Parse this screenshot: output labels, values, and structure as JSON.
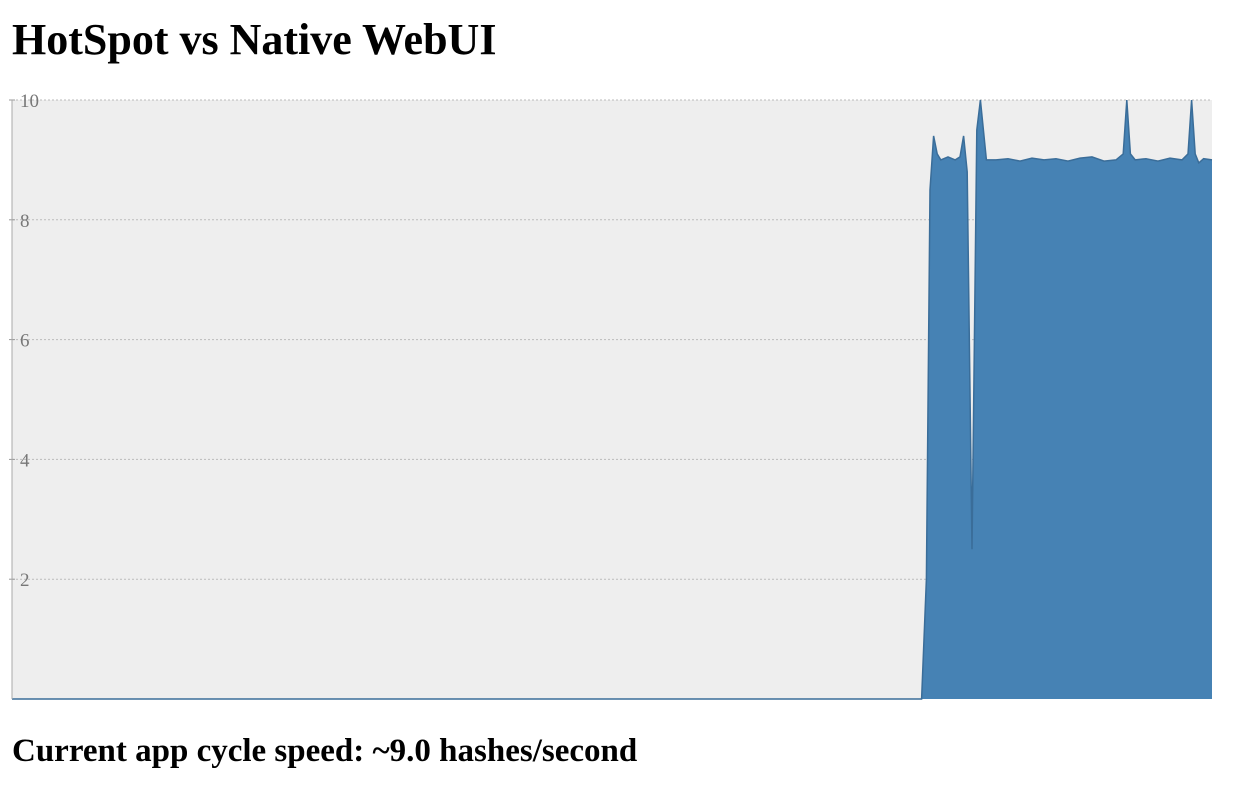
{
  "header": {
    "title": "HotSpot vs Native WebUI"
  },
  "status": {
    "text": "Current app cycle speed: ~9.0 hashes/second"
  },
  "chart_data": {
    "type": "area",
    "title": "",
    "xlabel": "",
    "ylabel": "",
    "ylim": [
      0,
      10
    ],
    "xlim": [
      0,
      100
    ],
    "yticks": [
      2,
      4,
      6,
      8,
      10
    ],
    "grid": true,
    "background": "#eeeeee",
    "gridColor": "#bbbbbb",
    "series": [
      {
        "color": "#4682b4",
        "points": [
          [
            0,
            0
          ],
          [
            75.8,
            0
          ],
          [
            76.2,
            2.0
          ],
          [
            76.5,
            8.5
          ],
          [
            76.8,
            9.4
          ],
          [
            77.1,
            9.1
          ],
          [
            77.4,
            9.0
          ],
          [
            78.0,
            9.05
          ],
          [
            78.6,
            9.0
          ],
          [
            79.0,
            9.05
          ],
          [
            79.3,
            9.4
          ],
          [
            79.6,
            8.8
          ],
          [
            80.0,
            2.5
          ],
          [
            80.4,
            9.5
          ],
          [
            80.7,
            10.0
          ],
          [
            80.9,
            9.6
          ],
          [
            81.2,
            9.0
          ],
          [
            82,
            9.0
          ],
          [
            83,
            9.02
          ],
          [
            84,
            8.98
          ],
          [
            85,
            9.03
          ],
          [
            86,
            9.0
          ],
          [
            87,
            9.02
          ],
          [
            88,
            8.98
          ],
          [
            89,
            9.03
          ],
          [
            90,
            9.05
          ],
          [
            91,
            8.98
          ],
          [
            92,
            9.0
          ],
          [
            92.6,
            9.1
          ],
          [
            92.9,
            10.0
          ],
          [
            93.2,
            9.1
          ],
          [
            93.6,
            9.0
          ],
          [
            94.5,
            9.02
          ],
          [
            95.5,
            8.98
          ],
          [
            96.5,
            9.03
          ],
          [
            97.5,
            9.0
          ],
          [
            98.0,
            9.1
          ],
          [
            98.3,
            10.0
          ],
          [
            98.6,
            9.1
          ],
          [
            98.9,
            8.95
          ],
          [
            99.3,
            9.02
          ],
          [
            100,
            9.0
          ]
        ]
      }
    ]
  }
}
